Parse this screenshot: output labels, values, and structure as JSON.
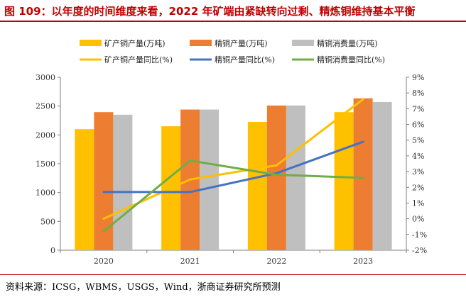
{
  "figure": {
    "title": "图 109：以年度的时间维度来看，2022 年矿端由紧缺转向过剩、精炼铜维持基本平衡",
    "source": "资料来源：ICSG，WBMS，USGS，Wind，浙商证券研究所预测"
  },
  "colors": {
    "title": "#c00000",
    "mine_bar": "#ffc000",
    "refined_prod_bar": "#ed7d31",
    "refined_cons_bar": "#bfbfbf",
    "mine_line": "#ffc000",
    "refined_prod_line": "#4472c4",
    "refined_cons_line": "#70ad47"
  },
  "chart_data": {
    "type": "bar",
    "categories": [
      "2020",
      "2021",
      "2022",
      "2023"
    ],
    "series": [
      {
        "name": "矿产铜产量(万吨)",
        "kind": "bar",
        "axis": "left",
        "color": "#ffc000",
        "values": [
          2100,
          2150,
          2225,
          2395
        ]
      },
      {
        "name": "精铜产量(万吨)",
        "kind": "bar",
        "axis": "left",
        "color": "#ed7d31",
        "values": [
          2395,
          2440,
          2510,
          2635
        ]
      },
      {
        "name": "精铜消费量(万吨)",
        "kind": "bar",
        "axis": "left",
        "color": "#bfbfbf",
        "values": [
          2350,
          2440,
          2510,
          2570
        ]
      },
      {
        "name": "矿产铜产量同比(%)",
        "kind": "line",
        "axis": "right",
        "color": "#ffc000",
        "values": [
          0.0,
          2.5,
          3.4,
          7.6
        ]
      },
      {
        "name": "精铜产量同比(%)",
        "kind": "line",
        "axis": "right",
        "color": "#4472c4",
        "values": [
          1.7,
          1.7,
          2.9,
          4.9
        ]
      },
      {
        "name": "精铜消费量同比(%)",
        "kind": "line",
        "axis": "right",
        "color": "#70ad47",
        "values": [
          -0.8,
          3.7,
          2.8,
          2.6
        ]
      }
    ],
    "y_left": {
      "min": 0,
      "max": 3000,
      "step": 500,
      "ticks": [
        "0",
        "500",
        "1000",
        "1500",
        "2000",
        "2500",
        "3000"
      ]
    },
    "y_right": {
      "min": -2,
      "max": 9,
      "step": 1,
      "ticks": [
        "-2%",
        "-1%",
        "0%",
        "1%",
        "2%",
        "3%",
        "4%",
        "5%",
        "6%",
        "7%",
        "8%",
        "9%"
      ]
    },
    "grid": false,
    "legend_position": "top"
  }
}
